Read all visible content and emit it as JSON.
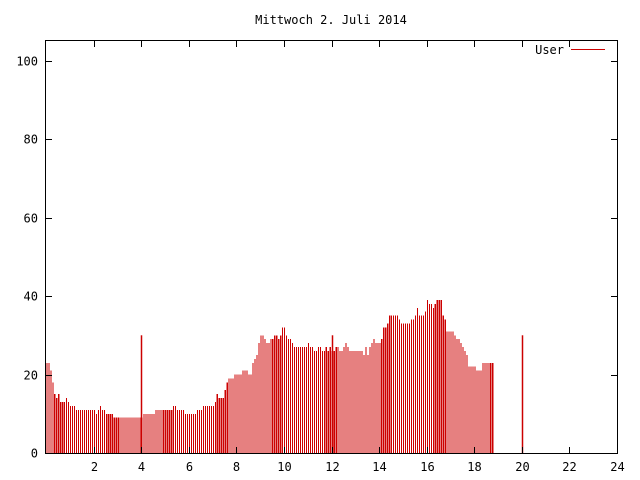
{
  "chart_data": {
    "type": "bar",
    "title": "Mittwoch 2. Juli 2014",
    "xlabel": "",
    "ylabel": "",
    "xlim": [
      0,
      24
    ],
    "ylim": [
      0,
      105
    ],
    "x_ticks": [
      2,
      4,
      6,
      8,
      10,
      12,
      14,
      16,
      18,
      20,
      22,
      24
    ],
    "y_ticks": [
      0,
      20,
      40,
      60,
      80,
      100
    ],
    "grid": false,
    "legend_position": "top-right",
    "series": [
      {
        "name": "User",
        "color": "#cc0000",
        "x_start": 0,
        "x_step": 0.0833,
        "values": [
          23,
          23,
          21,
          18,
          15,
          14,
          15,
          13,
          13,
          13,
          14,
          13,
          12,
          12,
          12,
          11,
          11,
          11,
          11,
          11,
          11,
          11,
          11,
          11,
          11,
          10,
          11,
          12,
          11,
          11,
          10,
          10,
          10,
          10,
          9,
          9,
          9,
          9,
          9,
          9,
          9,
          9,
          9,
          9,
          9,
          9,
          9,
          9,
          9,
          10,
          10,
          10,
          10,
          10,
          10,
          11,
          11,
          11,
          11,
          11,
          11,
          11,
          11,
          11,
          12,
          12,
          11,
          11,
          11,
          11,
          10,
          10,
          10,
          10,
          10,
          10,
          11,
          11,
          11,
          12,
          12,
          12,
          12,
          12,
          12,
          13,
          15,
          14,
          14,
          14,
          16,
          18,
          19,
          19,
          19,
          20,
          20,
          20,
          20,
          21,
          21,
          21,
          20,
          20,
          23,
          24,
          25,
          28,
          30,
          30,
          29,
          28,
          28,
          29,
          29,
          30,
          30,
          29,
          30,
          32,
          32,
          30,
          29,
          29,
          28,
          27,
          27,
          27,
          27,
          27,
          27,
          27,
          28,
          27,
          27,
          26,
          26,
          27,
          27,
          26,
          26,
          27,
          26,
          27,
          26,
          26,
          27,
          27,
          26,
          26,
          27,
          28,
          27,
          26,
          26,
          26,
          26,
          26,
          26,
          26,
          25,
          27,
          25,
          27,
          28,
          29,
          28,
          28,
          28,
          29,
          32,
          32,
          33,
          35,
          35,
          35,
          35,
          35,
          34,
          33,
          33,
          33,
          33,
          33,
          34,
          34,
          35,
          37,
          35,
          35,
          35,
          36,
          39,
          38,
          38,
          37,
          38,
          39,
          39,
          39,
          35,
          34,
          31,
          31,
          31,
          31,
          30,
          29,
          29,
          28,
          27,
          26,
          25,
          22,
          22,
          22,
          22,
          21,
          21,
          21,
          23,
          23,
          23,
          23,
          23,
          23
        ]
      }
    ],
    "vertical_markers": [
      4,
      12,
      20
    ]
  }
}
